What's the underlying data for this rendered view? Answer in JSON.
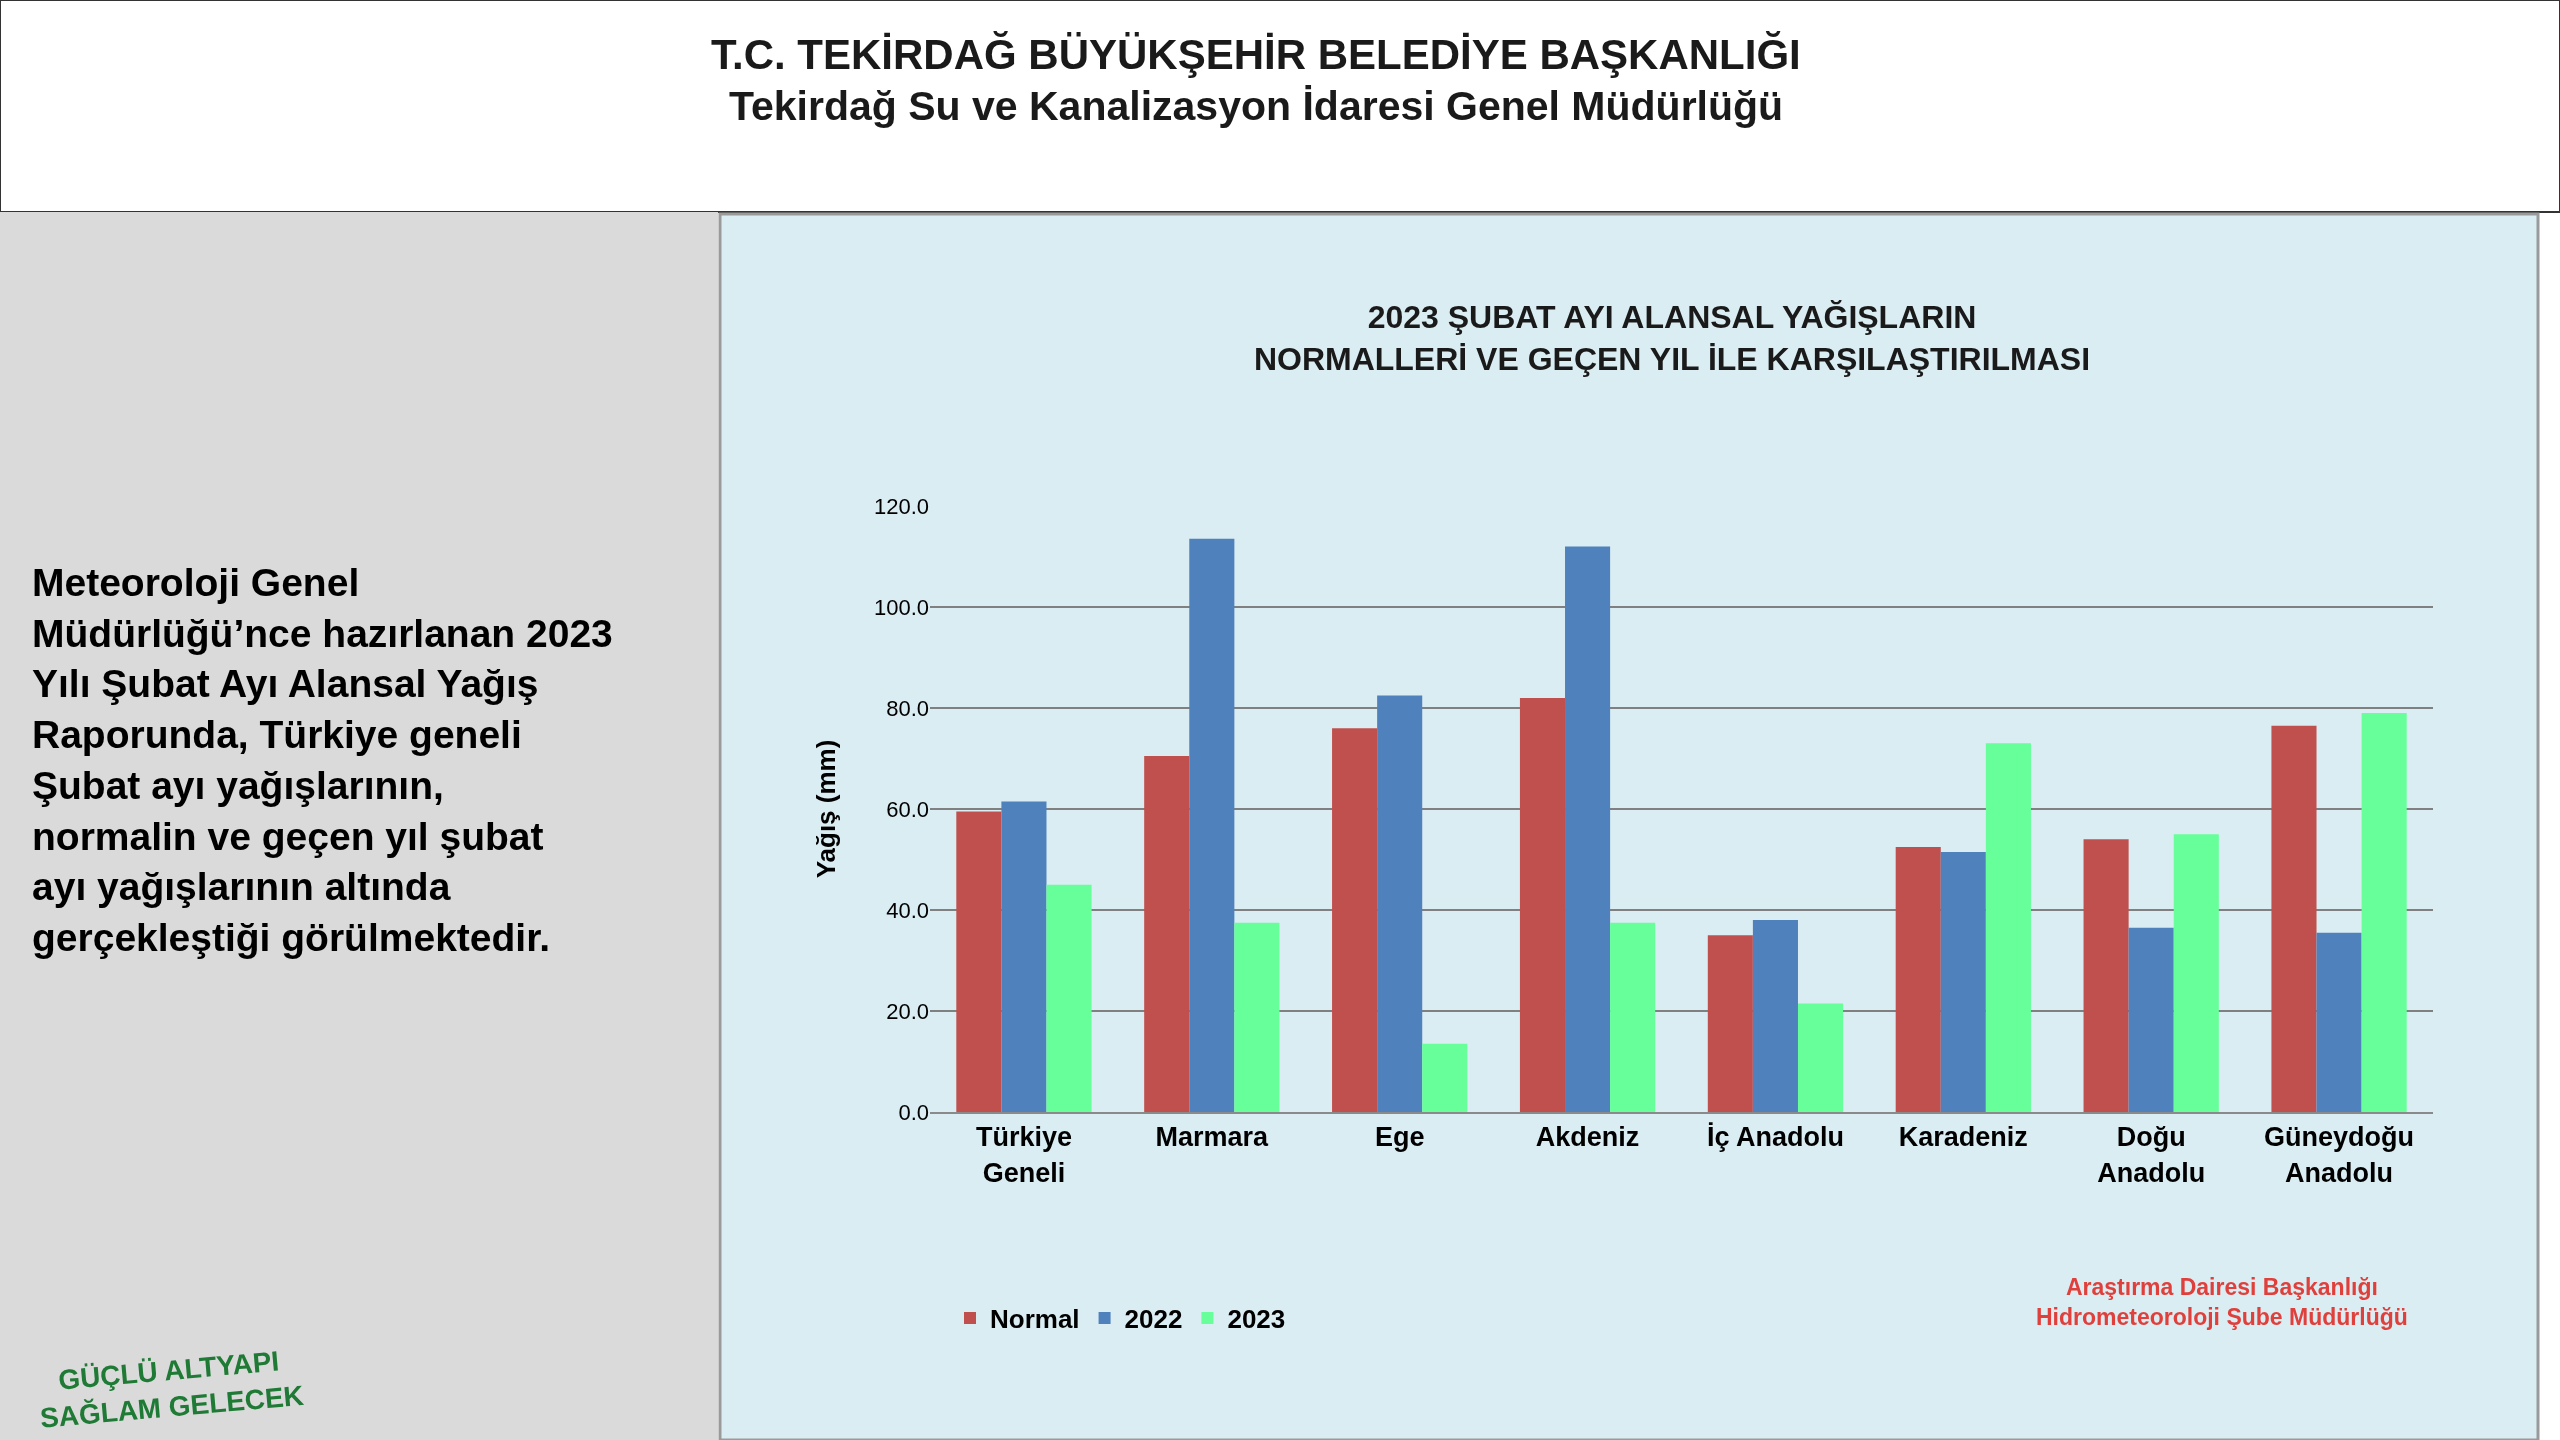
{
  "chart_data": {
    "type": "bar",
    "title": "2023 ŞUBAT AYI ALANSAL YAĞIŞLARIN\nNORMALLERİ VE GEÇEN YIL İLE KARŞILAŞTIRILMASI",
    "ylabel": "Yağış (mm)",
    "categories": [
      "Türkiye Geneli",
      "Marmara",
      "Ege",
      "Akdeniz",
      "İç Anadolu",
      "Karadeniz",
      "Doğu Anadolu",
      "Güneydoğu Anadolu"
    ],
    "series": [
      {
        "name": "Normal",
        "color": "#c0504d",
        "values": [
          59.5,
          70.5,
          76,
          82,
          35,
          52.5,
          54,
          76.5
        ]
      },
      {
        "name": "2022",
        "color": "#4f81bd",
        "values": [
          61.5,
          113.5,
          82.5,
          112,
          38,
          51.5,
          36.5,
          35.5
        ]
      },
      {
        "name": "2023",
        "color": "#66ff99",
        "values": [
          45,
          37.5,
          13.5,
          37.5,
          21.5,
          73,
          55,
          79
        ]
      }
    ],
    "ylim": [
      0,
      120
    ],
    "yticks": [
      {
        "value": 0,
        "label": "0.0"
      },
      {
        "value": 20,
        "label": "20.0"
      },
      {
        "value": 40,
        "label": "40.0"
      },
      {
        "value": 60,
        "label": "60.0"
      },
      {
        "value": 80,
        "label": "80.0"
      },
      {
        "value": 100,
        "label": "100.0"
      },
      {
        "value": 120,
        "label": "120.0"
      }
    ],
    "grid": "y",
    "legend": "bottom left",
    "annotations": [
      "T.C. TEKİRDAĞ BÜYÜKŞEHİR BELEDİYE BAŞKANLIĞI",
      "Tekirdağ Su ve Kanalizasyon İdaresi Genel Müdürlüğü",
      "Meteoroloji Genel Müdürlüğü’nce hazırlanan 2023 Yılı Şubat Ayı Alansal Yağış Raporunda, Türkiye geneli Şubat ayı yağışlarının, normalin ve geçen yıl şubat ayı yağışlarının altında gerçekleştiği görülmektedir.",
      "Araştırma Dairesi Başkanlığı\nHidrometeoroloji Şube Müdürlüğü",
      "GÜÇLÜ ALTYAPI\nSAĞLAM GELECEK"
    ]
  }
}
